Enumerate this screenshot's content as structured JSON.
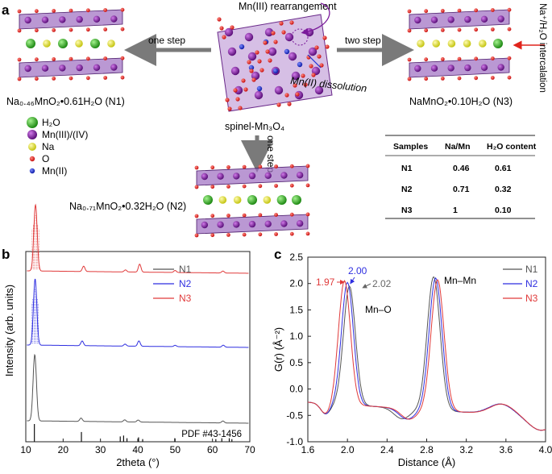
{
  "panel_labels": {
    "a": "a",
    "b": "b",
    "c": "c"
  },
  "schematic": {
    "center_label": "spinel-Mn₃O₄",
    "mn3_rearrangement": "Mn(III) rearrangement",
    "mn2_dissolution": "Mn(II) dissolution",
    "one_step_left": "one step",
    "one_step_down": "one step",
    "two_step": "two step",
    "intercalation": "Na⁺/H₂O intercalation",
    "n1_label": "Na₀.₄₆MnO₂•0.61H₂O (N1)",
    "n2_label": "Na₀.₇₁MnO₂•0.32H₂O (N2)",
    "n3_label": "NaMnO₂•0.10H₂O (N3)"
  },
  "legend_atoms": [
    {
      "label": "H₂O",
      "color": "#3cb02a"
    },
    {
      "label": "Mn(III)/(IV)",
      "color": "#7a1a9a"
    },
    {
      "label": "Na",
      "color": "#e6e626"
    },
    {
      "label": "O",
      "color": "#e0241c"
    },
    {
      "label": "Mn(II)",
      "color": "#1b2fd6"
    }
  ],
  "composition_table": {
    "headers": [
      "Samples",
      "Na/Mn",
      "H₂O content"
    ],
    "rows": [
      [
        "N1",
        "0.46",
        "0.61"
      ],
      [
        "N2",
        "0.71",
        "0.32"
      ],
      [
        "N3",
        "1",
        "0.10"
      ]
    ]
  },
  "colors": {
    "N1": "#555555",
    "N2": "#2f2fe0",
    "N3": "#e03a3a"
  },
  "chart_data": [
    {
      "type": "line",
      "title": "",
      "xlabel": "2theta (°)",
      "ylabel": "Intensity (arb. units)",
      "xlim": [
        10,
        70
      ],
      "x_ticks": [
        10,
        20,
        30,
        40,
        50,
        60,
        70
      ],
      "series": [
        {
          "name": "N1",
          "peaks": [
            [
              12.4,
              1.0
            ],
            [
              24.8,
              0.05
            ],
            [
              36.5,
              0.03
            ],
            [
              40.1,
              0.03
            ],
            [
              62.8,
              0.03
            ]
          ]
        },
        {
          "name": "N2",
          "peaks": [
            [
              12.5,
              1.0
            ],
            [
              25.1,
              0.07
            ],
            [
              36.6,
              0.03
            ],
            [
              40.3,
              0.08
            ],
            [
              50.0,
              0.02
            ],
            [
              62.9,
              0.03
            ]
          ]
        },
        {
          "name": "N3",
          "peaks": [
            [
              12.6,
              1.0
            ],
            [
              25.5,
              0.08
            ],
            [
              36.7,
              0.03
            ],
            [
              40.5,
              0.12
            ],
            [
              50.0,
              0.03
            ],
            [
              62.8,
              0.03
            ]
          ]
        }
      ],
      "reference": {
        "label": "PDF #43-1456",
        "lines": [
          [
            12.3,
            1.0
          ],
          [
            24.9,
            0.55
          ],
          [
            35.3,
            0.3
          ],
          [
            36.2,
            0.35
          ],
          [
            37.1,
            0.2
          ],
          [
            40.2,
            0.25
          ],
          [
            41.3,
            0.15
          ],
          [
            49.9,
            0.2
          ],
          [
            60.9,
            0.15
          ],
          [
            62.5,
            0.2
          ],
          [
            64.5,
            0.2
          ],
          [
            65.2,
            0.15
          ]
        ]
      }
    },
    {
      "type": "line",
      "title": "",
      "xlabel": "Distance (Å)",
      "ylabel": "G(r) (Å⁻²)",
      "xlim": [
        1.6,
        4.0
      ],
      "ylim": [
        -1.0,
        2.5
      ],
      "x_ticks": [
        "1.6",
        "2.0",
        "2.4",
        "2.8",
        "3.2",
        "3.6",
        "4.0"
      ],
      "y_ticks": [
        "-1.0",
        "-0.5",
        "0.0",
        "0.5",
        "1.0",
        "1.5",
        "2.0",
        "2.5"
      ],
      "series": [
        {
          "name": "N1",
          "peak1": [
            2.02,
            1.85
          ],
          "peak2": [
            2.87,
            2.08
          ],
          "min1": [
            2.55,
            -0.5
          ],
          "bump": [
            3.55,
            -0.32
          ]
        },
        {
          "name": "N2",
          "peak1": [
            2.0,
            1.92
          ],
          "peak2": [
            2.89,
            2.06
          ],
          "min1": [
            2.6,
            -0.5
          ],
          "bump": [
            3.55,
            -0.33
          ]
        },
        {
          "name": "N3",
          "peak1": [
            1.97,
            1.95
          ],
          "peak2": [
            2.91,
            2.03
          ],
          "min1": [
            2.62,
            -0.55
          ],
          "bump": [
            3.56,
            -0.3
          ]
        }
      ],
      "annotations": {
        "n1_peak": "2.02",
        "n2_peak": "2.00",
        "n3_peak": "1.97",
        "mn_o": "Mn–O",
        "mn_mn": "Mn–Mn"
      }
    }
  ]
}
